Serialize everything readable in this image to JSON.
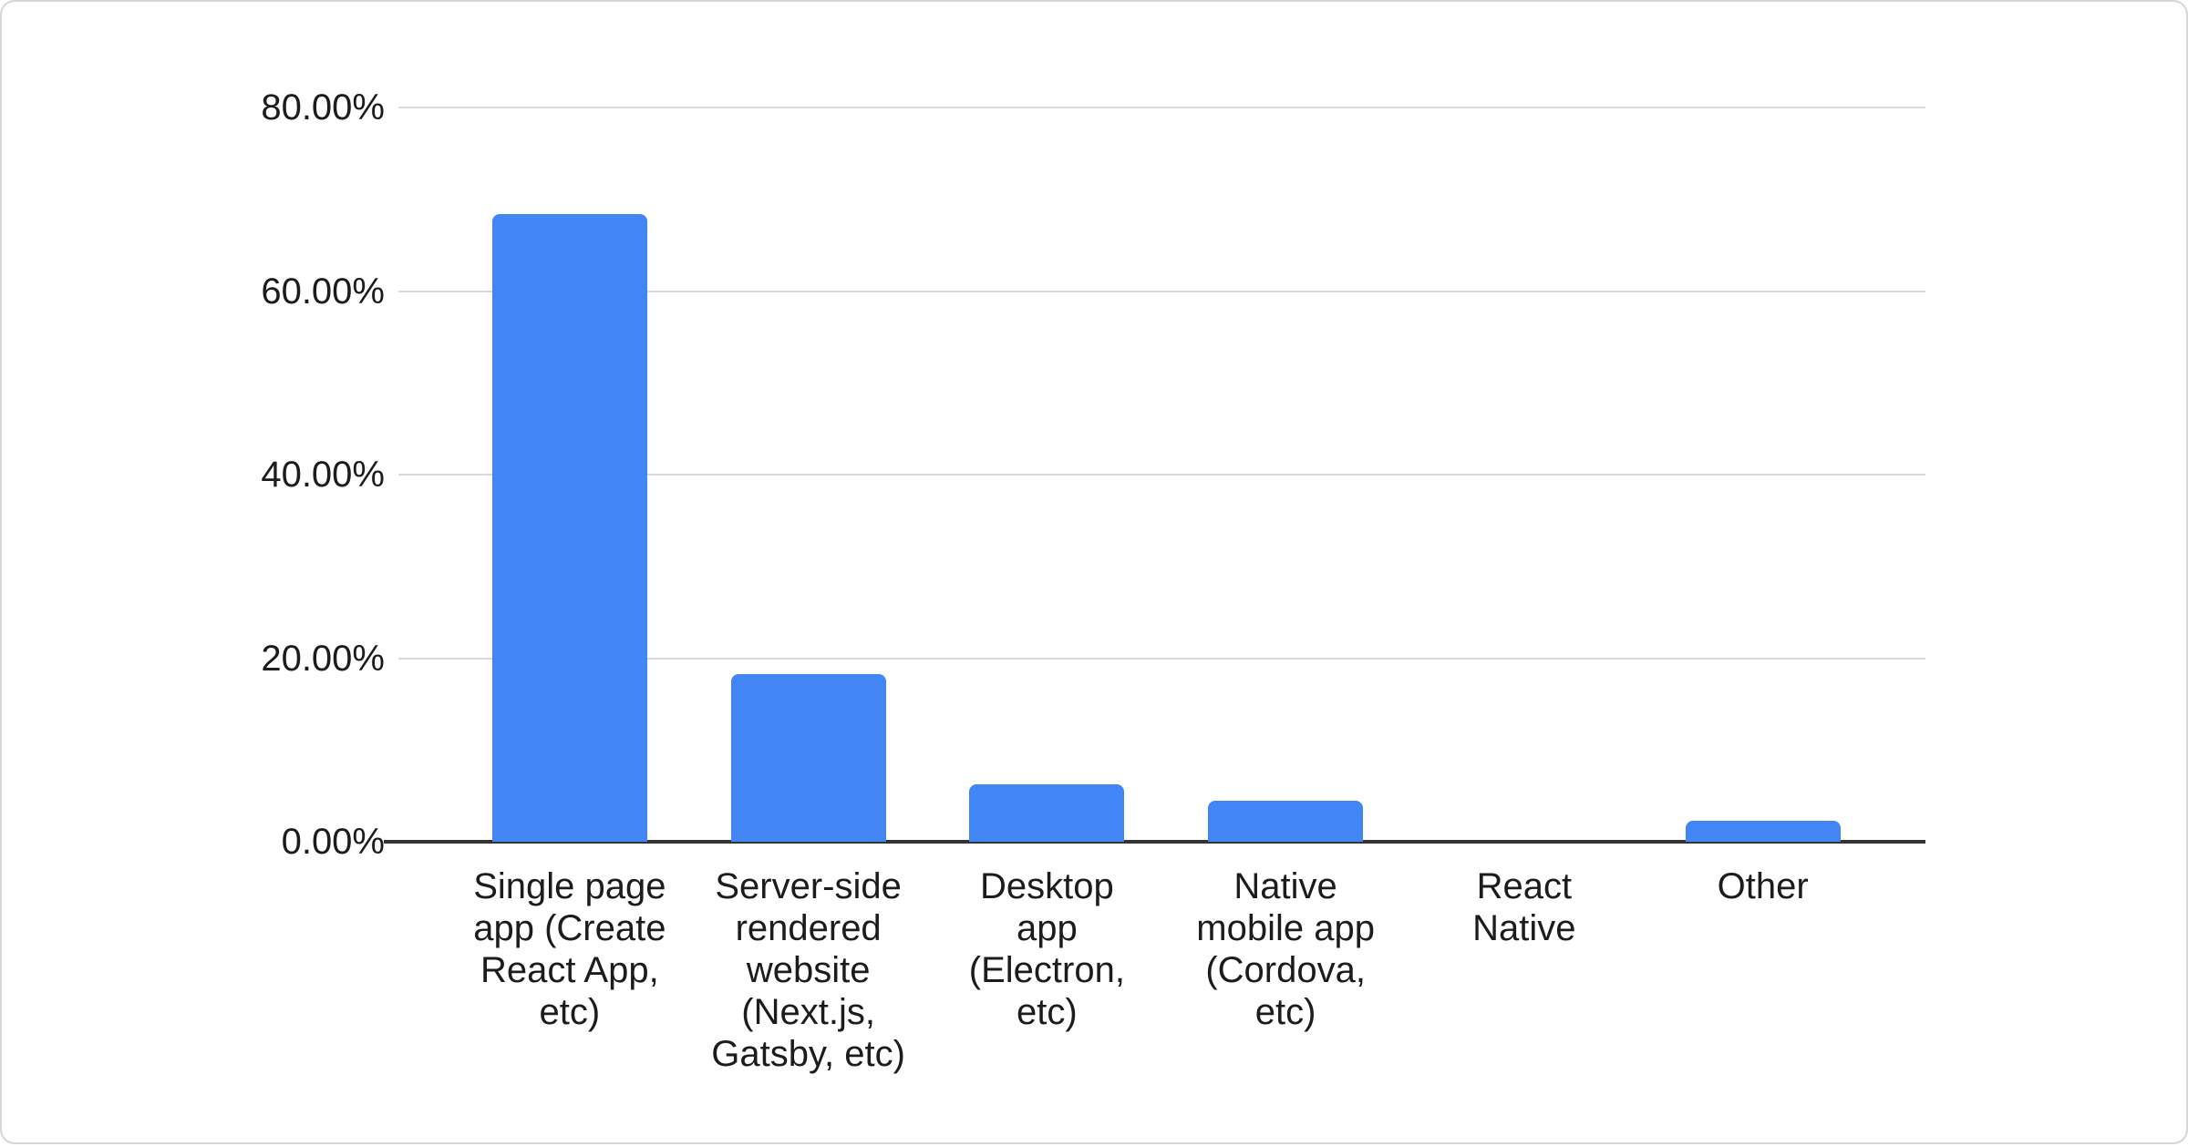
{
  "chart_data": {
    "type": "bar",
    "title": "",
    "xlabel": "",
    "ylabel": "",
    "legend": "none",
    "grid": true,
    "ylim": [
      0,
      80
    ],
    "yticks": [
      {
        "value": 0,
        "label": "0.00%"
      },
      {
        "value": 20,
        "label": "20.00%"
      },
      {
        "value": 40,
        "label": "40.00%"
      },
      {
        "value": 60,
        "label": "60.00%"
      },
      {
        "value": 80,
        "label": "80.00%"
      }
    ],
    "keys": [
      "single-page-app",
      "server-side-rendered-website",
      "desktop-app",
      "native-mobile-app",
      "react-native",
      "other"
    ],
    "categories": [
      "Single page app (Create React App, etc)",
      "Server-side rendered website (Next.js, Gatsby, etc)",
      "Desktop app (Electron, etc)",
      "Native mobile app (Cordova, etc)",
      "React Native",
      "Other"
    ],
    "category_lines": [
      [
        "Single page",
        "app (Create",
        "React App,",
        "etc)"
      ],
      [
        "Server-side",
        "rendered",
        "website",
        "(Next.js,",
        "Gatsby, etc)"
      ],
      [
        "Desktop",
        "app",
        "(Electron,",
        "etc)"
      ],
      [
        "Native",
        "mobile app",
        "(Cordova,",
        "etc)"
      ],
      [
        "React",
        "Native"
      ],
      [
        "Other"
      ]
    ],
    "values": [
      68.4,
      18.3,
      6.3,
      4.5,
      0,
      2.3
    ],
    "unit": "%",
    "colors": {
      "bar": "#4285f4",
      "gridline": "#d9d9d9",
      "axis_line": "#333333",
      "label_text": "#1c1c1c",
      "card_background": "#ffffff",
      "card_border": "#d3d6db"
    }
  }
}
